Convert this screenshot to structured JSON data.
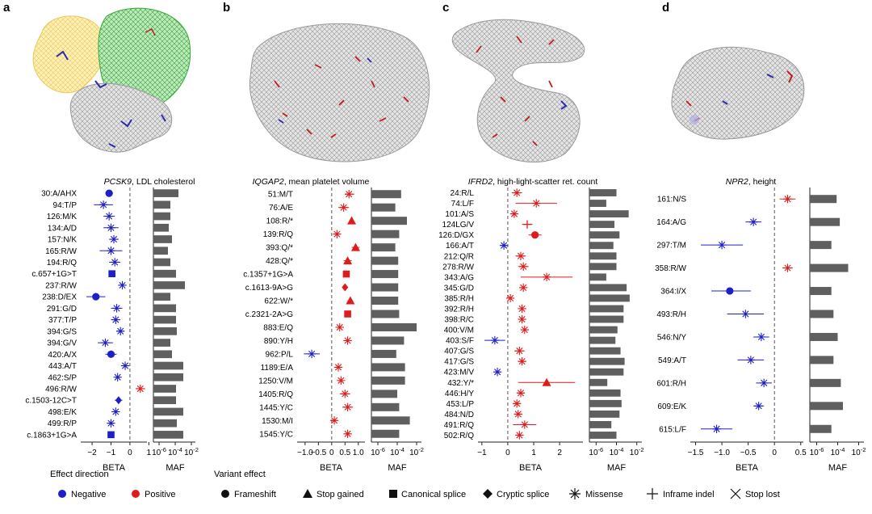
{
  "legend": {
    "effect_title": "Effect direction",
    "variant_title": "Variant effect",
    "negative": "Negative",
    "positive": "Positive",
    "frameshift": "Frameshift",
    "stop_gained": "Stop gained",
    "canonical_splice": "Canonical splice",
    "cryptic_splice": "Cryptic splice",
    "missense": "Missense",
    "inframe_indel": "Inframe indel",
    "stop_lost": "Stop lost"
  },
  "colors": {
    "negative": "#1f1fc8",
    "positive": "#e01b1b",
    "bar": "#5f5f5f",
    "dash": "#555555"
  },
  "chart_data": [
    {
      "type": "forest",
      "panel": "a",
      "gene": "PCSK9",
      "trait": ", LDL cholesterol",
      "xlabel": "BETA",
      "xlim": [
        -2.6,
        0.9
      ],
      "xticks": [
        -2,
        -1,
        0,
        1
      ],
      "maf_label": "MAF",
      "maf_ticks": [
        "10^-6",
        "10^-4",
        "10^-2"
      ],
      "variants": [
        {
          "label": "30:A/AHX",
          "beta": -1.1,
          "lo": -1.3,
          "hi": -0.9,
          "effect": "frameshift",
          "dir": "neg",
          "maf": -3.6
        },
        {
          "label": "94:T/P",
          "beta": -1.4,
          "lo": -1.9,
          "hi": -0.9,
          "effect": "missense",
          "dir": "neg",
          "maf": -4.6
        },
        {
          "label": "126:M/K",
          "beta": -1.1,
          "lo": -1.4,
          "hi": -0.8,
          "effect": "missense",
          "dir": "neg",
          "maf": -4.6
        },
        {
          "label": "134:A/D",
          "beta": -1.0,
          "lo": -1.4,
          "hi": -0.6,
          "effect": "missense",
          "dir": "neg",
          "maf": -4.8
        },
        {
          "label": "157:N/K",
          "beta": -0.85,
          "lo": -1.1,
          "hi": -0.6,
          "effect": "missense",
          "dir": "neg",
          "maf": -4.4
        },
        {
          "label": "165:R/W",
          "beta": -1.0,
          "lo": -1.6,
          "hi": -0.4,
          "effect": "missense",
          "dir": "neg",
          "maf": -4.9
        },
        {
          "label": "194:R/Q",
          "beta": -0.8,
          "lo": -1.1,
          "hi": -0.5,
          "effect": "missense",
          "dir": "neg",
          "maf": -4.6
        },
        {
          "label": "c.657+1G>T",
          "beta": -0.95,
          "lo": -1.05,
          "hi": -0.85,
          "effect": "canonical_splice",
          "dir": "neg",
          "maf": -3.9
        },
        {
          "label": "237:R/W",
          "beta": -0.4,
          "lo": -0.6,
          "hi": -0.2,
          "effect": "missense",
          "dir": "neg",
          "maf": -2.8
        },
        {
          "label": "238:D/EX",
          "beta": -1.8,
          "lo": -2.3,
          "hi": -1.3,
          "effect": "frameshift",
          "dir": "neg",
          "maf": -4.6
        },
        {
          "label": "291:G/D",
          "beta": -0.7,
          "lo": -1.0,
          "hi": -0.4,
          "effect": "missense",
          "dir": "neg",
          "maf": -3.9
        },
        {
          "label": "377:T/P",
          "beta": -0.75,
          "lo": -1.0,
          "hi": -0.5,
          "effect": "missense",
          "dir": "neg",
          "maf": -3.9
        },
        {
          "label": "394:G/S",
          "beta": -0.5,
          "lo": -0.7,
          "hi": -0.3,
          "effect": "missense",
          "dir": "neg",
          "maf": -3.8
        },
        {
          "label": "394:G/V",
          "beta": -1.3,
          "lo": -1.7,
          "hi": -0.9,
          "effect": "missense",
          "dir": "neg",
          "maf": -4.6
        },
        {
          "label": "420:A/X",
          "beta": -1.0,
          "lo": -1.3,
          "hi": -0.7,
          "effect": "frameshift",
          "dir": "neg",
          "maf": -4.4
        },
        {
          "label": "443:A/T",
          "beta": -0.25,
          "lo": -0.4,
          "hi": -0.1,
          "effect": "missense",
          "dir": "neg",
          "maf": -3.0
        },
        {
          "label": "462:S/P",
          "beta": -0.65,
          "lo": -0.8,
          "hi": -0.5,
          "effect": "missense",
          "dir": "neg",
          "maf": -3.0
        },
        {
          "label": "496:R/W",
          "beta": 0.55,
          "lo": 0.3,
          "hi": 0.8,
          "effect": "missense",
          "dir": "pos",
          "maf": -3.9
        },
        {
          "label": "c.1503-12C>T",
          "beta": -0.6,
          "lo": -0.8,
          "hi": -0.4,
          "effect": "cryptic_splice",
          "dir": "neg",
          "maf": -3.9
        },
        {
          "label": "498:E/K",
          "beta": -0.75,
          "lo": -0.9,
          "hi": -0.6,
          "effect": "missense",
          "dir": "neg",
          "maf": -3.0
        },
        {
          "label": "499:R/P",
          "beta": -1.0,
          "lo": -1.15,
          "hi": -0.85,
          "effect": "missense",
          "dir": "neg",
          "maf": -3.8
        },
        {
          "label": "c.1863+1G>A",
          "beta": -1.0,
          "lo": -1.1,
          "hi": -0.9,
          "effect": "canonical_splice",
          "dir": "neg",
          "maf": -3.0
        }
      ]
    },
    {
      "type": "forest",
      "panel": "b",
      "gene": "IQGAP2",
      "trait": ", mean platelet volume",
      "xlabel": "BETA",
      "xlim": [
        -1.3,
        1.25
      ],
      "xticks": [
        -1.0,
        -0.5,
        0,
        0.5,
        1.0
      ],
      "maf_label": "MAF",
      "maf_ticks": [
        "10^-6",
        "10^-4",
        "10^-2"
      ],
      "variants": [
        {
          "label": "51:M/T",
          "beta": 0.65,
          "lo": 0.5,
          "hi": 0.85,
          "effect": "missense",
          "dir": "pos",
          "maf": -3.6
        },
        {
          "label": "76:A/E",
          "beta": 0.45,
          "lo": 0.25,
          "hi": 0.65,
          "effect": "missense",
          "dir": "pos",
          "maf": -4.2
        },
        {
          "label": "108:R/*",
          "beta": 0.75,
          "lo": 0.7,
          "hi": 0.8,
          "effect": "stop_gained",
          "dir": "pos",
          "maf": -3.0
        },
        {
          "label": "139:R/Q",
          "beta": 0.2,
          "lo": 0.1,
          "hi": 0.3,
          "effect": "missense",
          "dir": "pos",
          "maf": -3.8
        },
        {
          "label": "393:Q/*",
          "beta": 0.9,
          "lo": 0.75,
          "hi": 1.05,
          "effect": "stop_gained",
          "dir": "pos",
          "maf": -4.2
        },
        {
          "label": "428:Q/*",
          "beta": 0.6,
          "lo": 0.45,
          "hi": 0.75,
          "effect": "stop_gained",
          "dir": "pos",
          "maf": -3.9
        },
        {
          "label": "c.1357+1G>A",
          "beta": 0.55,
          "lo": 0.45,
          "hi": 0.65,
          "effect": "canonical_splice",
          "dir": "pos",
          "maf": -3.9
        },
        {
          "label": "c.1613-9A>G",
          "beta": 0.5,
          "lo": 0.4,
          "hi": 0.6,
          "effect": "cryptic_splice",
          "dir": "pos",
          "maf": -3.9
        },
        {
          "label": "622:W/*",
          "beta": 0.7,
          "lo": 0.6,
          "hi": 0.8,
          "effect": "stop_gained",
          "dir": "pos",
          "maf": -3.9
        },
        {
          "label": "c.2321-2A>G",
          "beta": 0.6,
          "lo": 0.5,
          "hi": 0.7,
          "effect": "canonical_splice",
          "dir": "pos",
          "maf": -3.8
        },
        {
          "label": "883:E/Q",
          "beta": 0.3,
          "lo": 0.2,
          "hi": 0.4,
          "effect": "missense",
          "dir": "pos",
          "maf": -2.0
        },
        {
          "label": "890:Y/H",
          "beta": 0.6,
          "lo": 0.5,
          "hi": 0.7,
          "effect": "missense",
          "dir": "pos",
          "maf": -3.3
        },
        {
          "label": "962:P/L",
          "beta": -0.75,
          "lo": -1.05,
          "hi": -0.45,
          "effect": "missense",
          "dir": "neg",
          "maf": -4.1
        },
        {
          "label": "1189:E/A",
          "beta": 0.25,
          "lo": 0.15,
          "hi": 0.35,
          "effect": "missense",
          "dir": "pos",
          "maf": -3.2
        },
        {
          "label": "1250:V/M",
          "beta": 0.35,
          "lo": 0.25,
          "hi": 0.45,
          "effect": "missense",
          "dir": "pos",
          "maf": -3.2
        },
        {
          "label": "1405:R/Q",
          "beta": 0.5,
          "lo": 0.3,
          "hi": 0.7,
          "effect": "missense",
          "dir": "pos",
          "maf": -4.0
        },
        {
          "label": "1445:Y/C",
          "beta": 0.6,
          "lo": 0.4,
          "hi": 0.8,
          "effect": "missense",
          "dir": "pos",
          "maf": -3.8
        },
        {
          "label": "1530:M/I",
          "beta": 0.1,
          "lo": 0.0,
          "hi": 0.2,
          "effect": "missense",
          "dir": "pos",
          "maf": -2.7
        },
        {
          "label": "1545:Y/C",
          "beta": 0.6,
          "lo": 0.5,
          "hi": 0.7,
          "effect": "missense",
          "dir": "pos",
          "maf": -3.8
        }
      ]
    },
    {
      "type": "forest",
      "panel": "c",
      "gene": "IFRD2",
      "trait": ", high-light-scatter ret. count",
      "xlabel": "BETA",
      "xlim": [
        -1.15,
        2.9
      ],
      "xticks": [
        -1,
        0,
        1,
        2
      ],
      "maf_label": "MAF",
      "maf_ticks": [
        "10^-6",
        "10^-4",
        "10^-2"
      ],
      "variants": [
        {
          "label": "24:R/L",
          "beta": 0.35,
          "lo": 0.15,
          "hi": 0.55,
          "effect": "missense",
          "dir": "pos",
          "maf": -4.0
        },
        {
          "label": "74:L/F",
          "beta": 1.1,
          "lo": 0.3,
          "hi": 1.9,
          "effect": "missense",
          "dir": "pos",
          "maf": -5.0
        },
        {
          "label": "101:A/S",
          "beta": 0.25,
          "lo": 0.15,
          "hi": 0.35,
          "effect": "missense",
          "dir": "pos",
          "maf": -2.8
        },
        {
          "label": "124LG/V",
          "beta": 0.75,
          "lo": 0.55,
          "hi": 0.95,
          "effect": "inframe_indel",
          "dir": "pos",
          "maf": -4.2
        },
        {
          "label": "126:D/GX",
          "beta": 1.05,
          "lo": 0.8,
          "hi": 1.3,
          "effect": "frameshift",
          "dir": "pos",
          "maf": -3.7
        },
        {
          "label": "166:A/T",
          "beta": -0.15,
          "lo": -0.3,
          "hi": 0.0,
          "effect": "missense",
          "dir": "neg",
          "maf": -4.3
        },
        {
          "label": "212:Q/R",
          "beta": 0.5,
          "lo": 0.3,
          "hi": 0.7,
          "effect": "missense",
          "dir": "pos",
          "maf": -4.0
        },
        {
          "label": "278:R/W",
          "beta": 0.6,
          "lo": 0.4,
          "hi": 0.8,
          "effect": "missense",
          "dir": "pos",
          "maf": -4.0
        },
        {
          "label": "343:A/G",
          "beta": 1.5,
          "lo": 0.5,
          "hi": 2.5,
          "effect": "missense",
          "dir": "pos",
          "maf": -5.0
        },
        {
          "label": "345:G/D",
          "beta": 0.6,
          "lo": 0.45,
          "hi": 0.75,
          "effect": "missense",
          "dir": "pos",
          "maf": -3.0
        },
        {
          "label": "385:R/H",
          "beta": 0.1,
          "lo": 0.0,
          "hi": 0.2,
          "effect": "missense",
          "dir": "pos",
          "maf": -2.7
        },
        {
          "label": "392:R/H",
          "beta": 0.55,
          "lo": 0.4,
          "hi": 0.7,
          "effect": "missense",
          "dir": "pos",
          "maf": -3.3
        },
        {
          "label": "398:R/C",
          "beta": 0.55,
          "lo": 0.4,
          "hi": 0.7,
          "effect": "missense",
          "dir": "pos",
          "maf": -3.3
        },
        {
          "label": "400:V/M",
          "beta": 0.65,
          "lo": 0.5,
          "hi": 0.8,
          "effect": "missense",
          "dir": "pos",
          "maf": -3.9
        },
        {
          "label": "403:S/F",
          "beta": -0.5,
          "lo": -0.9,
          "hi": -0.1,
          "effect": "missense",
          "dir": "neg",
          "maf": -4.1
        },
        {
          "label": "407:G/S",
          "beta": 0.45,
          "lo": 0.25,
          "hi": 0.65,
          "effect": "missense",
          "dir": "pos",
          "maf": -3.6
        },
        {
          "label": "417:G/S",
          "beta": 0.55,
          "lo": 0.4,
          "hi": 0.7,
          "effect": "missense",
          "dir": "pos",
          "maf": -3.2
        },
        {
          "label": "423:M/V",
          "beta": -0.4,
          "lo": -0.5,
          "hi": -0.3,
          "effect": "missense",
          "dir": "neg",
          "maf": -3.3
        },
        {
          "label": "432:Y/*",
          "beta": 1.5,
          "lo": 0.4,
          "hi": 2.6,
          "effect": "stop_gained",
          "dir": "pos",
          "maf": -4.9
        },
        {
          "label": "446:H/Y",
          "beta": 0.5,
          "lo": 0.35,
          "hi": 0.65,
          "effect": "missense",
          "dir": "pos",
          "maf": -3.6
        },
        {
          "label": "453:L/P",
          "beta": 0.35,
          "lo": 0.2,
          "hi": 0.5,
          "effect": "missense",
          "dir": "pos",
          "maf": -3.5
        },
        {
          "label": "484:N/D",
          "beta": 0.4,
          "lo": 0.25,
          "hi": 0.55,
          "effect": "missense",
          "dir": "pos",
          "maf": -3.7
        },
        {
          "label": "491:R/Q",
          "beta": 0.65,
          "lo": 0.2,
          "hi": 1.1,
          "effect": "missense",
          "dir": "pos",
          "maf": -4.5
        },
        {
          "label": "502:R/Q",
          "beta": 0.45,
          "lo": 0.3,
          "hi": 0.6,
          "effect": "missense",
          "dir": "pos",
          "maf": -4.0
        }
      ]
    },
    {
      "type": "forest",
      "panel": "d",
      "gene": "NPR2",
      "trait": ", height",
      "xlabel": "BETA",
      "xlim": [
        -1.6,
        0.55
      ],
      "xticks": [
        -1.5,
        -1.0,
        -0.5,
        0,
        0.5
      ],
      "maf_label": "MAF",
      "maf_ticks": [
        "10^-6",
        "10^-4",
        "10^-2"
      ],
      "variants": [
        {
          "label": "161:N/S",
          "beta": 0.25,
          "lo": 0.1,
          "hi": 0.4,
          "effect": "missense",
          "dir": "pos",
          "maf": -4.1
        },
        {
          "label": "164:A/G",
          "beta": -0.4,
          "lo": -0.55,
          "hi": -0.25,
          "effect": "missense",
          "dir": "neg",
          "maf": -3.8
        },
        {
          "label": "297:T/M",
          "beta": -1.0,
          "lo": -1.4,
          "hi": -0.6,
          "effect": "missense",
          "dir": "neg",
          "maf": -4.6
        },
        {
          "label": "358:R/W",
          "beta": 0.25,
          "lo": 0.15,
          "hi": 0.35,
          "effect": "missense",
          "dir": "pos",
          "maf": -3.0
        },
        {
          "label": "364:I/X",
          "beta": -0.85,
          "lo": -1.2,
          "hi": -0.45,
          "effect": "frameshift",
          "dir": "neg",
          "maf": -4.6
        },
        {
          "label": "493:R/H",
          "beta": -0.55,
          "lo": -0.9,
          "hi": -0.2,
          "effect": "missense",
          "dir": "neg",
          "maf": -4.4
        },
        {
          "label": "546:N/Y",
          "beta": -0.25,
          "lo": -0.4,
          "hi": -0.1,
          "effect": "missense",
          "dir": "neg",
          "maf": -4.0
        },
        {
          "label": "549:A/T",
          "beta": -0.45,
          "lo": -0.7,
          "hi": -0.2,
          "effect": "missense",
          "dir": "neg",
          "maf": -4.4
        },
        {
          "label": "601:R/H",
          "beta": -0.2,
          "lo": -0.35,
          "hi": -0.05,
          "effect": "missense",
          "dir": "neg",
          "maf": -3.7
        },
        {
          "label": "609:E/K",
          "beta": -0.3,
          "lo": -0.4,
          "hi": -0.2,
          "effect": "missense",
          "dir": "neg",
          "maf": -3.5
        },
        {
          "label": "615:L/F",
          "beta": -1.1,
          "lo": -1.4,
          "hi": -0.8,
          "effect": "missense",
          "dir": "neg",
          "maf": -4.6
        }
      ]
    }
  ],
  "panels": [
    "a",
    "b",
    "c",
    "d"
  ]
}
